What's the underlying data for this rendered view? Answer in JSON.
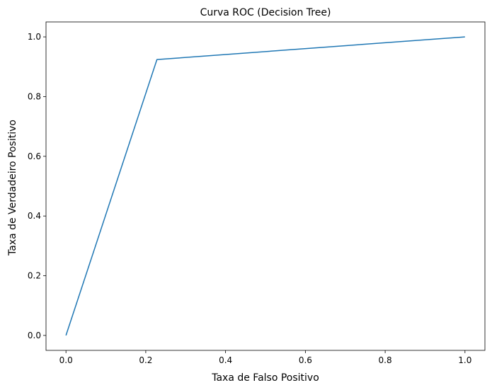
{
  "chart_data": {
    "type": "line",
    "title": "Curva ROC (Decision Tree)",
    "xlabel": "Taxa de Falso Positivo",
    "ylabel": "Taxa de Verdadeiro Positivo",
    "xlim": [
      -0.05,
      1.05
    ],
    "ylim": [
      -0.05,
      1.05
    ],
    "xticks": [
      0.0,
      0.2,
      0.4,
      0.6,
      0.8,
      1.0
    ],
    "yticks": [
      0.0,
      0.2,
      0.4,
      0.6,
      0.8,
      1.0
    ],
    "xtick_labels": [
      "0.0",
      "0.2",
      "0.4",
      "0.6",
      "0.8",
      "1.0"
    ],
    "ytick_labels": [
      "0.0",
      "0.2",
      "0.4",
      "0.6",
      "0.8",
      "1.0"
    ],
    "grid": false,
    "legend": "none",
    "series": [
      {
        "color": "#1f77b4",
        "x": [
          0.0,
          0.228,
          1.0
        ],
        "y": [
          0.0,
          0.924,
          1.0
        ]
      }
    ]
  }
}
